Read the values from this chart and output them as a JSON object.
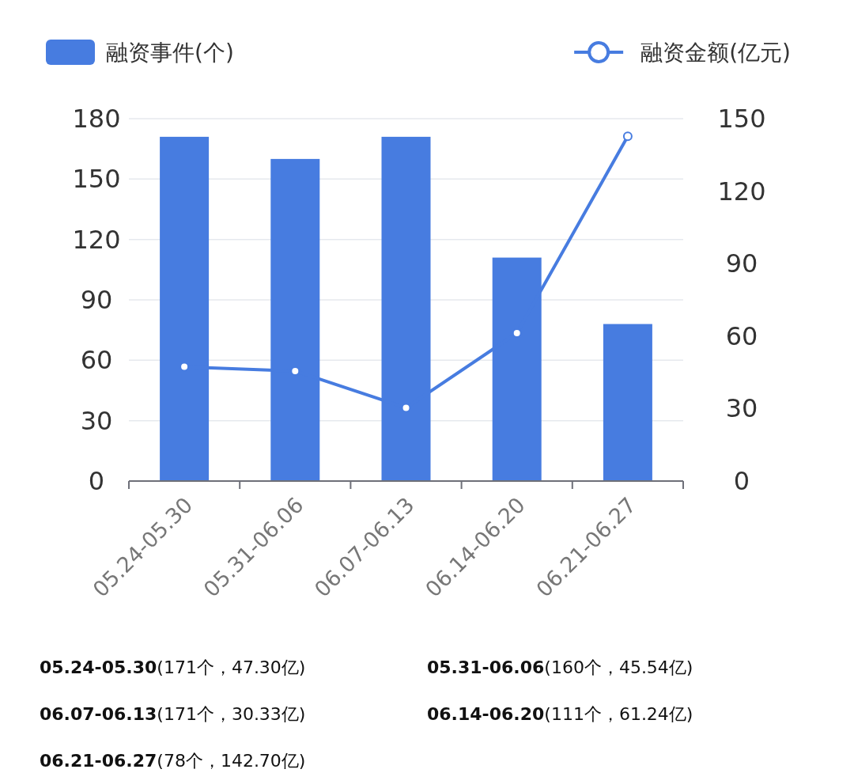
{
  "chart_data": {
    "type": "bar",
    "categories": [
      "05.24-05.30",
      "05.31-06.06",
      "06.07-06.13",
      "06.14-06.20",
      "06.21-06.27"
    ],
    "series": [
      {
        "name": "融资事件(个)",
        "color": "#477ce0",
        "values": [
          171,
          160,
          171,
          111,
          78
        ]
      },
      {
        "type": "line",
        "name": "融资金额(亿元)",
        "color": "#477ce0",
        "axis": "y2",
        "marker": "circle",
        "values": [
          47.3,
          45.54,
          30.33,
          61.24,
          142.7
        ]
      }
    ],
    "ylim": [
      0,
      180
    ],
    "yticks": [
      0,
      30,
      60,
      90,
      120,
      150,
      180
    ],
    "y2lim": [
      0,
      150
    ],
    "y2ticks": [
      0,
      30,
      60,
      90,
      120,
      150
    ],
    "grid": "y",
    "legend": "top",
    "annotations": [
      "05.24-05.30(171个，47.30亿)",
      "05.31-06.06(160个，45.54亿)",
      "06.07-06.13(171个，30.33亿)",
      "06.14-06.20(111个，61.24亿)",
      "06.21-06.27(78个，142.70亿)"
    ]
  }
}
